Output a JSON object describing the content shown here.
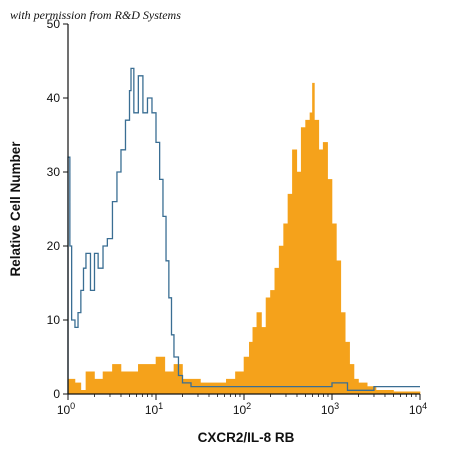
{
  "credit": "with permission from R&D Systems",
  "chart_data": {
    "type": "area",
    "xlabel": "CXCR2/IL-8 RB",
    "ylabel": "Relative Cell Number",
    "xscale": "log",
    "xlim": [
      1,
      10000
    ],
    "ylim": [
      0,
      50
    ],
    "y_ticks": [
      0,
      10,
      20,
      30,
      40,
      50
    ],
    "x_ticks": [
      {
        "value": 1,
        "base": "10",
        "exp": "0"
      },
      {
        "value": 10,
        "base": "10",
        "exp": "1"
      },
      {
        "value": 100,
        "base": "10",
        "exp": "2"
      },
      {
        "value": 1000,
        "base": "10",
        "exp": "3"
      },
      {
        "value": 10000,
        "base": "10",
        "exp": "4"
      }
    ],
    "grid": false,
    "series": [
      {
        "style": "filled",
        "color": "#F5A21B",
        "x": [
          1.0,
          1.2,
          1.4,
          1.6,
          2.0,
          2.5,
          3.2,
          4.0,
          5.0,
          6.3,
          8.0,
          10,
          12.6,
          16,
          20,
          25,
          32,
          40,
          50,
          63,
          80,
          100,
          115,
          126,
          140,
          158,
          178,
          200,
          224,
          251,
          282,
          316,
          355,
          398,
          447,
          501,
          562,
          600,
          631,
          708,
          794,
          891,
          1000,
          1122,
          1259,
          1413,
          1585,
          1778,
          2000,
          2512,
          3162,
          5000,
          10000
        ],
        "y": [
          2,
          1.5,
          0.5,
          3,
          2,
          3,
          4,
          3,
          3,
          4,
          4,
          5,
          3,
          4,
          2,
          2,
          1.5,
          1.5,
          1.5,
          2,
          3,
          5,
          7,
          9,
          11,
          9,
          13,
          14,
          17,
          20,
          23,
          27,
          33,
          30,
          36,
          37,
          38,
          42,
          37,
          33,
          34,
          29,
          23,
          18,
          11,
          7,
          4,
          2,
          1.5,
          1,
          0.5,
          0.3,
          0
        ]
      },
      {
        "style": "outline",
        "color": "#3A6E93",
        "x": [
          1.0,
          1.05,
          1.1,
          1.15,
          1.2,
          1.3,
          1.4,
          1.5,
          1.6,
          1.8,
          2.0,
          2.2,
          2.5,
          2.8,
          3.2,
          3.6,
          4.0,
          4.5,
          5.0,
          5.2,
          5.6,
          6.3,
          7.1,
          8.0,
          9.0,
          10,
          11,
          12,
          13,
          14,
          15,
          16,
          18,
          20,
          25,
          32,
          40,
          50,
          63,
          80,
          100,
          200,
          500,
          800,
          1000,
          1500,
          3000,
          5000,
          10000
        ],
        "y": [
          32,
          20,
          10,
          10,
          9,
          11,
          14,
          17,
          19,
          14,
          19,
          17,
          20,
          21,
          26,
          30,
          33,
          37,
          41,
          44,
          38,
          43,
          38,
          40,
          38,
          34,
          29,
          24,
          18,
          13,
          8,
          5,
          2.5,
          1.5,
          1,
          1,
          1,
          1,
          1,
          1,
          1,
          1,
          1,
          1,
          1.5,
          0.5,
          1,
          1,
          1
        ]
      }
    ]
  }
}
